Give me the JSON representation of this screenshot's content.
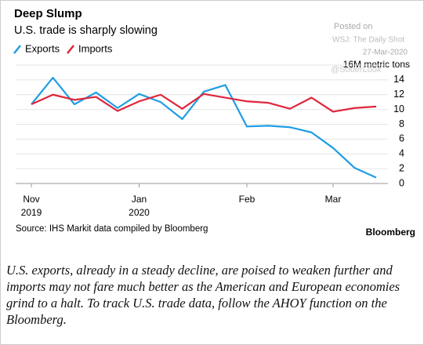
{
  "chart_data": {
    "type": "line",
    "title": "Deep Slump",
    "subtitle": "U.S. trade is sharply slowing",
    "categories": [
      "Nov\n2019",
      null,
      null,
      null,
      null,
      "Jan\n2020",
      null,
      null,
      null,
      null,
      "Feb",
      null,
      null,
      null,
      "Mar",
      null,
      null
    ],
    "series": [
      {
        "name": "Exports",
        "color": "#1f9de4",
        "values": [
          10.7,
          14.3,
          10.7,
          12.3,
          10.2,
          12.1,
          11.0,
          8.7,
          12.4,
          13.3,
          7.7,
          7.8,
          7.6,
          6.9,
          4.8,
          2.1,
          0.8
        ]
      },
      {
        "name": "Imports",
        "color": "#e0263c",
        "values": [
          10.7,
          12.0,
          11.3,
          11.7,
          9.8,
          11.1,
          12.0,
          10.1,
          12.1,
          11.6,
          11.1,
          10.9,
          10.1,
          11.6,
          9.7,
          10.2,
          10.4
        ]
      }
    ],
    "ylim": [
      0,
      16
    ],
    "yticks": [
      0,
      2,
      4,
      6,
      8,
      10,
      12,
      14,
      {
        "value": 16,
        "label": "16M metric tons"
      }
    ],
    "grid": true,
    "legend": "top-left",
    "source": "Source: IHS Markit data compiled by Bloomberg",
    "logo": "Bloomberg",
    "watermark": [
      "Posted on",
      "WSJ: The Daily Shot",
      "27-Mar-2020",
      "@SoberLook"
    ]
  },
  "caption": "U.S. exports, already in a steady decline, are poised to weaken further and imports may not fare much better as the American and European economies grind to a halt. To track U.S. trade data, follow the AHOY function on the Bloomberg."
}
